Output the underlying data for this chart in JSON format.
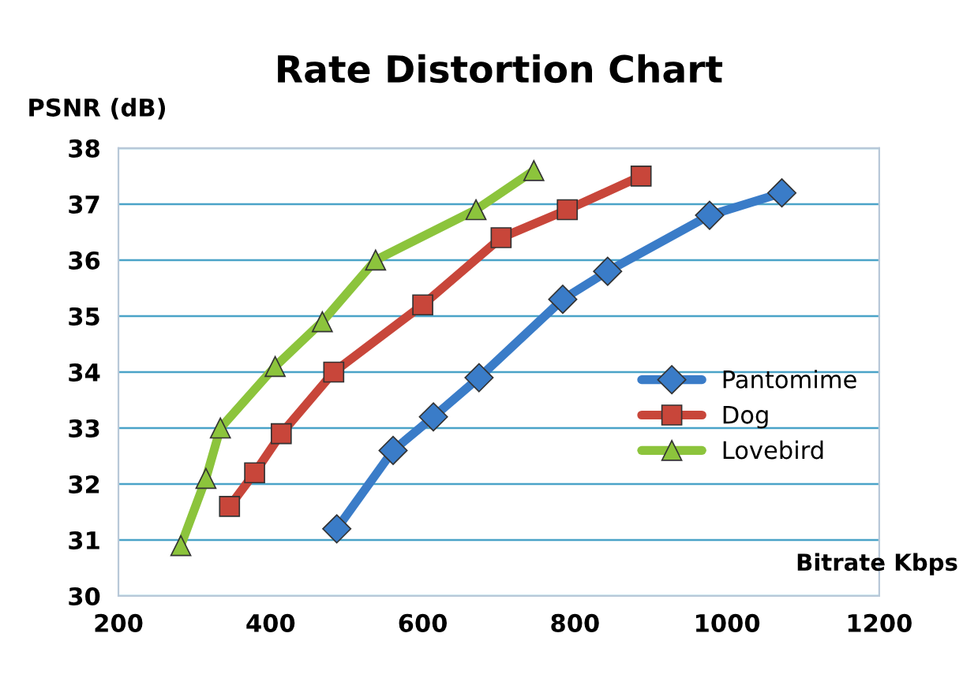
{
  "chart_data": {
    "type": "line",
    "title": "Rate Distortion Chart",
    "xlabel": "Bitrate Kbps",
    "ylabel": "PSNR (dB)",
    "xlim": [
      200,
      1200
    ],
    "xticks": [
      200,
      400,
      600,
      800,
      1000,
      1200
    ],
    "ylim": [
      30,
      38
    ],
    "yticks": [
      30,
      31,
      32,
      33,
      34,
      35,
      36,
      37,
      38
    ],
    "grid": "y",
    "legend": "right",
    "line_style": "solid",
    "series": [
      {
        "name": "Pantomime",
        "color": "#3a7cc8",
        "marker": "diamond",
        "x": [
          487,
          561,
          614,
          674,
          784,
          843,
          977,
          1072
        ],
        "values": [
          31.2,
          32.6,
          33.2,
          33.9,
          35.3,
          35.8,
          36.8,
          37.2
        ]
      },
      {
        "name": "Dog",
        "color": "#c8463a",
        "marker": "square",
        "x": [
          346,
          379,
          414,
          483,
          600,
          703,
          790,
          887
        ],
        "values": [
          31.6,
          32.2,
          32.9,
          34.0,
          35.2,
          36.4,
          36.9,
          37.5
        ]
      },
      {
        "name": "Lovebird",
        "color": "#8cc43c",
        "marker": "triangle",
        "x": [
          282,
          315,
          334,
          406,
          468,
          538,
          670,
          746
        ],
        "values": [
          30.9,
          32.1,
          33.0,
          34.1,
          34.9,
          36.0,
          36.9,
          37.6
        ]
      }
    ]
  }
}
